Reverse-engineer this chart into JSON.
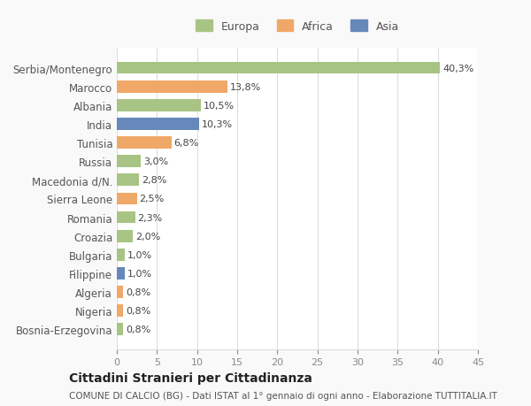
{
  "categories": [
    "Bosnia-Erzegovina",
    "Nigeria",
    "Algeria",
    "Filippine",
    "Bulgaria",
    "Croazia",
    "Romania",
    "Sierra Leone",
    "Macedonia d/N.",
    "Russia",
    "Tunisia",
    "India",
    "Albania",
    "Marocco",
    "Serbia/Montenegro"
  ],
  "values": [
    0.8,
    0.8,
    0.8,
    1.0,
    1.0,
    2.0,
    2.3,
    2.5,
    2.8,
    3.0,
    6.8,
    10.3,
    10.5,
    13.8,
    40.3
  ],
  "labels": [
    "0,8%",
    "0,8%",
    "0,8%",
    "1,0%",
    "1,0%",
    "2,0%",
    "2,3%",
    "2,5%",
    "2,8%",
    "3,0%",
    "6,8%",
    "10,3%",
    "10,5%",
    "13,8%",
    "40,3%"
  ],
  "colors": [
    "#a8c484",
    "#f0a868",
    "#f0a868",
    "#6688bb",
    "#a8c484",
    "#a8c484",
    "#a8c484",
    "#f0a868",
    "#a8c484",
    "#a8c484",
    "#f0a868",
    "#6688bb",
    "#a8c484",
    "#f0a868",
    "#a8c484"
  ],
  "legend": [
    {
      "label": "Europa",
      "color": "#a8c484"
    },
    {
      "label": "Africa",
      "color": "#f0a868"
    },
    {
      "label": "Asia",
      "color": "#6688bb"
    }
  ],
  "xlim": [
    0,
    45
  ],
  "xticks": [
    0,
    5,
    10,
    15,
    20,
    25,
    30,
    35,
    40,
    45
  ],
  "title": "Cittadini Stranieri per Cittadinanza",
  "subtitle": "COMUNE DI CALCIO (BG) - Dati ISTAT al 1° gennaio di ogni anno - Elaborazione TUTTITALIA.IT",
  "bg_color": "#f9f9f9",
  "bar_bg_color": "#ffffff",
  "grid_color": "#dddddd"
}
